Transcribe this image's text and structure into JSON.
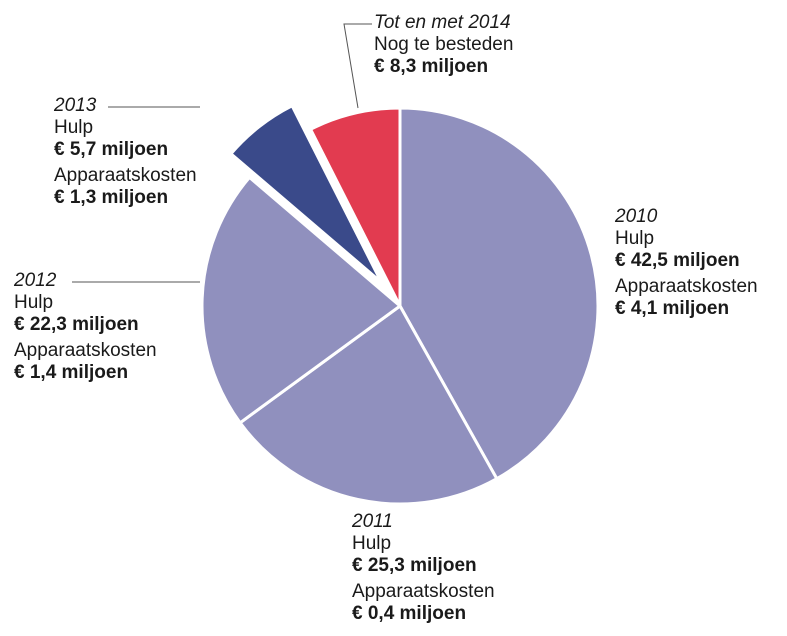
{
  "chart_data": {
    "type": "pie",
    "title": "",
    "slices": [
      {
        "year": "2010",
        "hulp_label": "Hulp",
        "hulp": "€ 42,5 miljoen",
        "app_label": "Apparaatskosten",
        "app": "€ 4,1 miljoen",
        "value": 46.6,
        "color": "#9090be",
        "exploded": false
      },
      {
        "year": "2011",
        "hulp_label": "Hulp",
        "hulp": "€ 25,3 miljoen",
        "app_label": "Apparaatskosten",
        "app": "€ 0,4 miljoen",
        "value": 25.7,
        "color": "#9090be",
        "exploded": false
      },
      {
        "year": "2012",
        "hulp_label": "Hulp",
        "hulp": "€ 22,3 miljoen",
        "app_label": "Apparaatskosten",
        "app": "€ 1,4 miljoen",
        "value": 23.7,
        "color": "#9090be",
        "exploded": false
      },
      {
        "year": "2013",
        "hulp_label": "Hulp",
        "hulp": "€ 5,7 miljoen",
        "app_label": "Apparaatskosten",
        "app": "€ 1,3 miljoen",
        "value": 7.0,
        "color": "#3a4a8a",
        "exploded": true
      },
      {
        "year": "Tot en met 2014",
        "hulp_label": "Nog te besteden",
        "hulp": "€ 8,3 miljoen",
        "app_label": "",
        "app": "",
        "value": 8.3,
        "color": "#e23b50",
        "exploded": false
      }
    ]
  }
}
